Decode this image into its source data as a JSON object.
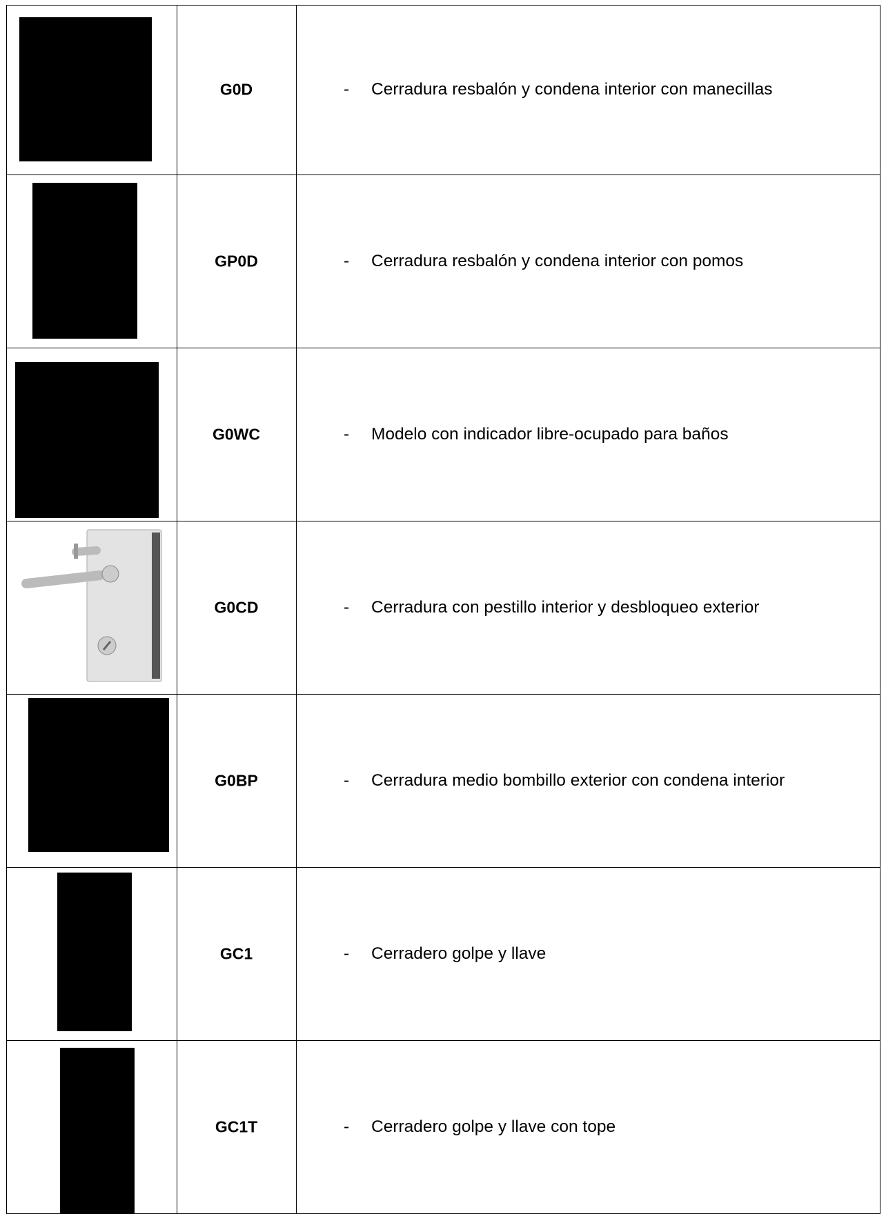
{
  "table": {
    "rows": [
      {
        "code": "G0D",
        "bullet": "-",
        "description": "Cerradura resbalón y condena interior con manecillas"
      },
      {
        "code": "GP0D",
        "bullet": "-",
        "description": "Cerradura resbalón y condena interior con pomos"
      },
      {
        "code": "G0WC",
        "bullet": "-",
        "description": "Modelo con indicador libre-ocupado para baños"
      },
      {
        "code": "G0CD",
        "bullet": "-",
        "description": "Cerradura con pestillo interior y desbloqueo exterior"
      },
      {
        "code": "G0BP",
        "bullet": "-",
        "description": "Cerradura medio bombillo exterior con condena interior"
      },
      {
        "code": "GC1",
        "bullet": "-",
        "description": "Cerradero golpe y llave"
      },
      {
        "code": "GC1T",
        "bullet": "-",
        "description": "Cerradero golpe y llave con tope"
      }
    ]
  }
}
